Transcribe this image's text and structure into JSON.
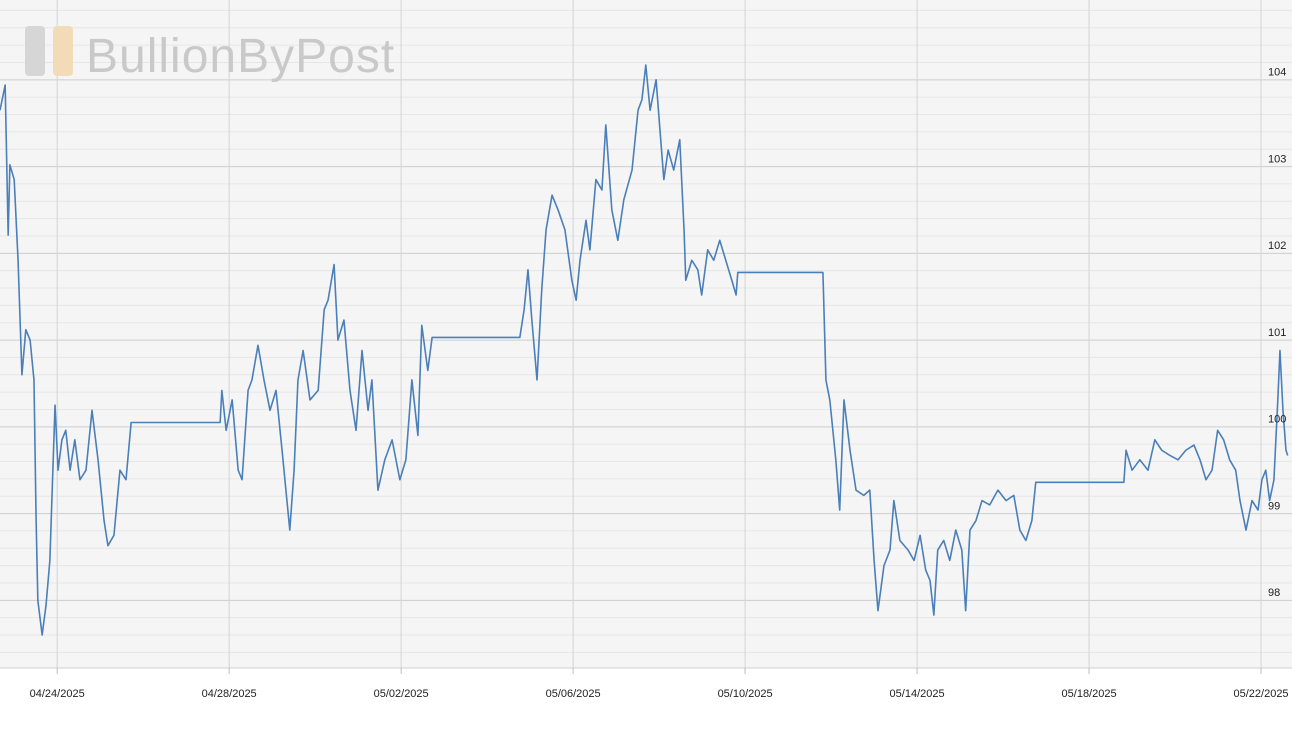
{
  "chart_data": {
    "type": "line",
    "watermark": "BullionByPost",
    "xlim": [
      112.67,
      142.72
    ],
    "xticks": [
      {
        "value": 114,
        "label": "04/24/2025"
      },
      {
        "value": 118,
        "label": "04/28/2025"
      },
      {
        "value": 122,
        "label": "05/02/2025"
      },
      {
        "value": 126,
        "label": "05/06/2025"
      },
      {
        "value": 130,
        "label": "05/10/2025"
      },
      {
        "value": 134,
        "label": "05/14/2025"
      },
      {
        "value": 138,
        "label": "05/18/2025"
      },
      {
        "value": 142,
        "label": "05/22/2025"
      }
    ],
    "ylim": [
      97.22,
      104.92
    ],
    "yticks": [
      98,
      99,
      100,
      101,
      102,
      103,
      104
    ],
    "minor_yticks": [
      97.4,
      97.6,
      97.8,
      98.2,
      98.4,
      98.6,
      98.8,
      99.2,
      99.4,
      99.6,
      99.8,
      100.2,
      100.4,
      100.6,
      100.8,
      101.2,
      101.4,
      101.6,
      101.8,
      102.2,
      102.4,
      102.6,
      102.8,
      103.2,
      103.4,
      103.6,
      103.8,
      104.2,
      104.4,
      104.6,
      104.8
    ],
    "grid": true,
    "x": [
      112.67,
      112.79,
      112.86,
      112.9,
      113.0,
      113.09,
      113.18,
      113.27,
      113.37,
      113.46,
      113.51,
      113.55,
      113.65,
      113.74,
      113.83,
      113.95,
      114.02,
      114.11,
      114.2,
      114.3,
      114.41,
      114.53,
      114.67,
      114.81,
      114.95,
      115.09,
      115.18,
      115.32,
      115.46,
      115.6,
      115.72,
      117.79,
      117.83,
      117.93,
      118.07,
      118.21,
      118.3,
      118.44,
      118.53,
      118.67,
      118.81,
      118.95,
      119.09,
      119.23,
      119.32,
      119.41,
      119.51,
      119.6,
      119.72,
      119.88,
      120.07,
      120.21,
      120.3,
      120.44,
      120.53,
      120.67,
      120.81,
      120.95,
      121.09,
      121.23,
      121.32,
      121.46,
      121.62,
      121.79,
      121.97,
      122.11,
      122.25,
      122.39,
      122.48,
      122.62,
      122.72,
      124.76,
      124.86,
      124.95,
      125.04,
      125.16,
      125.27,
      125.37,
      125.51,
      125.65,
      125.81,
      125.97,
      126.07,
      126.16,
      126.3,
      126.39,
      126.53,
      126.67,
      126.76,
      126.9,
      127.04,
      127.18,
      127.37,
      127.51,
      127.6,
      127.69,
      127.79,
      127.93,
      128.02,
      128.11,
      128.21,
      128.34,
      128.48,
      128.58,
      128.62,
      128.76,
      128.9,
      128.99,
      129.13,
      129.27,
      129.41,
      129.55,
      129.69,
      129.79,
      129.83,
      131.81,
      131.88,
      131.97,
      132.11,
      132.2,
      132.3,
      132.44,
      132.58,
      132.76,
      132.9,
      133.0,
      133.09,
      133.23,
      133.37,
      133.46,
      133.6,
      133.79,
      133.93,
      134.07,
      134.2,
      134.3,
      134.39,
      134.48,
      134.62,
      134.76,
      134.9,
      135.04,
      135.13,
      135.23,
      135.37,
      135.51,
      135.69,
      135.88,
      136.07,
      136.25,
      136.39,
      136.53,
      136.67,
      136.76,
      138.81,
      138.86,
      139.0,
      139.18,
      139.37,
      139.53,
      139.69,
      139.88,
      140.07,
      140.25,
      140.44,
      140.58,
      140.72,
      140.86,
      140.99,
      141.13,
      141.27,
      141.41,
      141.51,
      141.65,
      141.79,
      141.93,
      142.02,
      142.11,
      142.2,
      142.3,
      142.39,
      142.44,
      142.51,
      142.58,
      142.62
    ],
    "series": [
      {
        "color": "#4a7fb9",
        "values": [
          103.65,
          103.94,
          102.21,
          103.02,
          102.85,
          101.92,
          100.6,
          101.12,
          101.0,
          100.54,
          98.92,
          98.0,
          97.6,
          97.94,
          98.46,
          100.25,
          99.5,
          99.85,
          99.96,
          99.5,
          99.85,
          99.39,
          99.5,
          100.19,
          99.62,
          98.92,
          98.63,
          98.75,
          99.5,
          99.39,
          100.05,
          100.05,
          100.42,
          99.96,
          100.31,
          99.5,
          99.39,
          100.42,
          100.54,
          100.94,
          100.54,
          100.19,
          100.42,
          99.73,
          99.27,
          98.81,
          99.5,
          100.54,
          100.88,
          100.31,
          100.42,
          101.35,
          101.46,
          101.87,
          101.0,
          101.23,
          100.42,
          99.96,
          100.88,
          100.19,
          100.54,
          99.27,
          99.62,
          99.85,
          99.39,
          99.62,
          100.54,
          99.9,
          101.17,
          100.65,
          101.03,
          101.03,
          101.35,
          101.81,
          101.23,
          100.54,
          101.58,
          102.27,
          102.67,
          102.5,
          102.27,
          101.69,
          101.46,
          101.92,
          102.38,
          102.04,
          102.85,
          102.73,
          103.48,
          102.5,
          102.15,
          102.62,
          102.96,
          103.65,
          103.77,
          104.17,
          103.65,
          104.0,
          103.42,
          102.85,
          103.19,
          102.96,
          103.31,
          102.27,
          101.69,
          101.92,
          101.81,
          101.52,
          102.04,
          101.92,
          102.15,
          101.92,
          101.69,
          101.52,
          101.78,
          101.78,
          100.54,
          100.31,
          99.62,
          99.04,
          100.31,
          99.73,
          99.27,
          99.21,
          99.27,
          98.46,
          97.88,
          98.4,
          98.58,
          99.15,
          98.69,
          98.58,
          98.46,
          98.75,
          98.35,
          98.23,
          97.83,
          98.58,
          98.69,
          98.46,
          98.81,
          98.58,
          97.88,
          98.81,
          98.92,
          99.15,
          99.1,
          99.27,
          99.15,
          99.21,
          98.81,
          98.69,
          98.92,
          99.36,
          99.36,
          99.73,
          99.5,
          99.62,
          99.5,
          99.85,
          99.73,
          99.67,
          99.62,
          99.73,
          99.79,
          99.62,
          99.39,
          99.5,
          99.96,
          99.85,
          99.62,
          99.5,
          99.15,
          98.81,
          99.15,
          99.04,
          99.39,
          99.5,
          99.15,
          99.39,
          100.31,
          100.88,
          100.19,
          99.73,
          99.67
        ]
      }
    ]
  }
}
